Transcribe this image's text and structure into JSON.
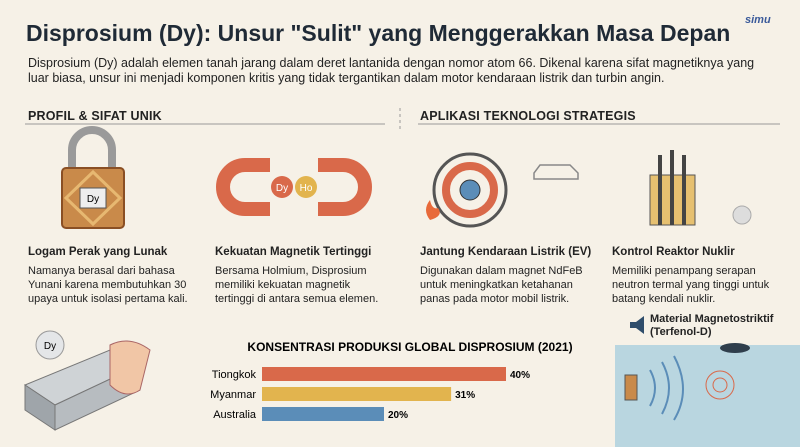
{
  "brand": "simu",
  "header": {
    "title": "Disprosium (Dy): Unsur \"Sulit\" yang Menggerakkan Masa Depan",
    "subtitle": "Disprosium (Dy) adalah elemen tanah jarang dalam deret lantanida dengan nomor atom 66. Dikenal karena sifat magnetiknya yang luar biasa, unsur ini menjadi komponen kritis yang tidak tergantikan dalam motor kendaraan listrik dan turbin angin."
  },
  "sections": [
    {
      "title": "PROFIL & SIFAT UNIK",
      "cards": [
        {
          "icon_label": "Dy",
          "title": "Logam Perak yang Lunak",
          "text": "Namanya berasal dari bahasa Yunani karena membutuhkan 30 upaya untuk isolasi pertama kali."
        },
        {
          "icon_labels": [
            "Dy",
            "Ho"
          ],
          "title": "Kekuatan Magnetik Tertinggi",
          "text": "Bersama Holmium, Disprosium memiliki kekuatan magnetik tertinggi di antara semua elemen."
        }
      ]
    },
    {
      "title": "APLIKASI TEKNOLOGI STRATEGIS",
      "cards": [
        {
          "title": "Jantung Kendaraan Listrik (EV)",
          "text": "Digunakan dalam magnet NdFeB untuk meningkatkan ketahanan panas pada motor mobil listrik."
        },
        {
          "title": "Kontrol Reaktor Nuklir",
          "text": "Memiliki penampang serapan neutron termal yang tinggi untuk batang kendali nuklir."
        }
      ]
    }
  ],
  "ingot_label": "Dy",
  "chart_data": {
    "type": "bar",
    "orientation": "horizontal",
    "title": "KONSENTRASI PRODUKSI GLOBAL DISPROSIUM (2021)",
    "categories": [
      "Tiongkok",
      "Myanmar",
      "Australia"
    ],
    "values": [
      40,
      31,
      20
    ],
    "value_labels": [
      "40%",
      "31%",
      "20%"
    ],
    "colors": [
      "#d9694a",
      "#e2b44e",
      "#5b8db8"
    ]
  },
  "callout": {
    "title": "Material Magnetostriktif (Terfenol-D)"
  }
}
